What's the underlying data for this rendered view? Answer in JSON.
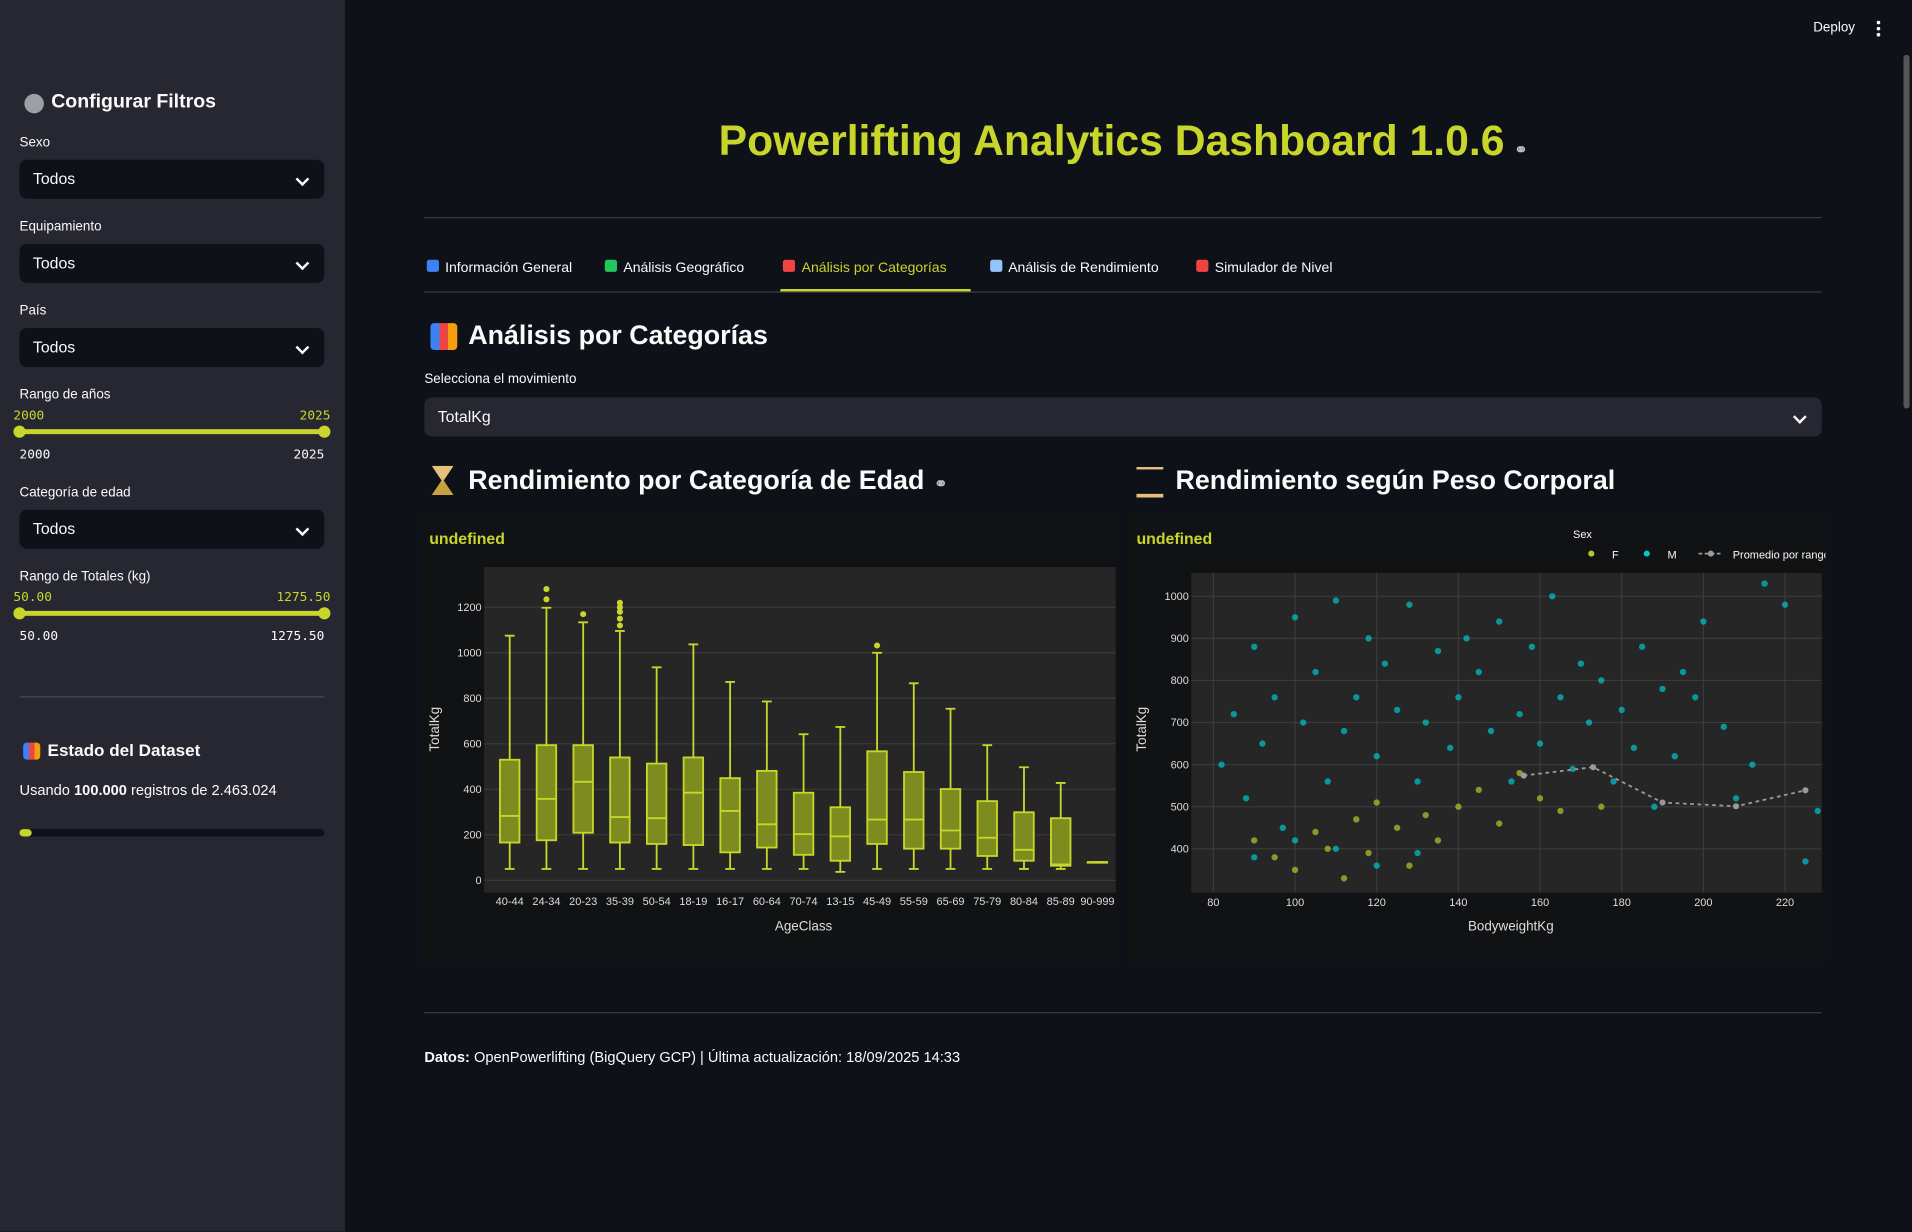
{
  "header": {
    "deploy": "Deploy"
  },
  "sidebar": {
    "title": "Configurar Filtros",
    "filters": [
      {
        "label": "Sexo",
        "value": "Todos"
      },
      {
        "label": "Equipamiento",
        "value": "Todos"
      },
      {
        "label": "País",
        "value": "Todos"
      }
    ],
    "year_range": {
      "label": "Rango de años",
      "min": 2000,
      "max": 2025,
      "value": [
        2000,
        2025
      ]
    },
    "age_category": {
      "label": "Categoría de edad",
      "value": "Todos"
    },
    "total_range": {
      "label": "Rango de Totales (kg)",
      "min": {
        "value": 50,
        "label": "50.00"
      },
      "max": {
        "value": 1275.5,
        "label": "1275.50"
      },
      "value": [
        {
          "value": 50,
          "label": "50.00"
        },
        {
          "value": 1275.5,
          "label": "1275.50"
        }
      ]
    },
    "dataset": {
      "title": "Estado del Dataset",
      "text_before": "Usando",
      "used": "100.000",
      "text_after": "registros de 2.463.024",
      "progress": 4
    }
  },
  "main": {
    "title": "Powerlifting Analytics Dashboard 1.0.6",
    "tabs": [
      "Información General",
      "Análisis Geográfico",
      "Análisis por Categorías",
      "Análisis de Rendimiento",
      "Simulador de Nivel"
    ],
    "active_tab": 2,
    "section_title": "Análisis por Categorías",
    "select_label": "Selecciona el movimiento",
    "select_value": "TotalKg",
    "footer": {
      "bold": "Datos:",
      "text": "OpenPowerlifting (BigQuery GCP) | Última actualización: 18/09/2025 14:33"
    }
  },
  "charts": [
    {
      "type": "box",
      "heading": "Rendimiento por Categoría de Edad",
      "title": "undefined",
      "x_label": "AgeClass",
      "y_label": "TotalKg",
      "color": "#c8d62b",
      "fill": "#7d8c1f",
      "categories": [
        "40-44",
        "24-34",
        "20-23",
        "35-39",
        "50-54",
        "18-19",
        "16-17",
        "60-64",
        "70-74",
        "13-15",
        "45-49",
        "55-59",
        "65-69",
        "75-79",
        "80-84",
        "85-89",
        "90-999"
      ],
      "whisker_low": [
        50,
        50,
        50,
        50,
        50,
        50,
        50,
        50,
        50,
        37,
        50,
        50,
        50,
        50,
        50,
        50,
        80
      ],
      "q1": [
        166,
        176,
        209,
        166,
        160,
        155,
        123,
        144,
        112,
        86,
        160,
        139,
        139,
        107,
        86,
        64,
        80
      ],
      "median": [
        283,
        358,
        433,
        278,
        273,
        385,
        305,
        246,
        203,
        193,
        267,
        267,
        219,
        187,
        134,
        70,
        80
      ],
      "q3": [
        530,
        594,
        594,
        540,
        513,
        540,
        449,
        481,
        385,
        321,
        567,
        476,
        401,
        348,
        299,
        273,
        80
      ],
      "whisker_high": [
        1075,
        1198,
        1134,
        1096,
        936,
        1037,
        872,
        786,
        642,
        674,
        1000,
        866,
        754,
        594,
        497,
        428,
        80
      ],
      "outliers": [
        [],
        [
          1235,
          1280
        ],
        [
          1170
        ],
        [
          1120,
          1150,
          1180,
          1200,
          1220
        ],
        [],
        [],
        [],
        [],
        [],
        [],
        [
          1032
        ],
        [],
        [],
        [],
        [],
        [],
        []
      ],
      "ylim": [
        -54,
        1377
      ],
      "yticks": [
        0,
        200,
        400,
        600,
        800,
        1000,
        1200
      ],
      "grid": true
    },
    {
      "type": "scatter",
      "heading": "Rendimiento según Peso Corporal",
      "title": "undefined",
      "x_label": "BodyweightKg",
      "y_label": "TotalKg",
      "legend_title": "Sex",
      "xlim": [
        74.6,
        229
      ],
      "ylim": [
        296,
        1055
      ],
      "xticks": [
        80,
        100,
        120,
        140,
        160,
        180,
        200,
        220
      ],
      "yticks": [
        400,
        500,
        600,
        700,
        800,
        900,
        1000
      ],
      "grid": true,
      "series": [
        {
          "name": "F",
          "color": "#b9c72a",
          "x": [
            90,
            95,
            100,
            105,
            108,
            112,
            115,
            118,
            120,
            125,
            128,
            132,
            135,
            140,
            145,
            150,
            155,
            160,
            165,
            175
          ],
          "y": [
            420,
            380,
            350,
            440,
            400,
            330,
            470,
            390,
            510,
            450,
            360,
            480,
            420,
            500,
            540,
            460,
            580,
            520,
            490,
            500
          ]
        },
        {
          "name": "M",
          "color": "#00c8cc",
          "x": [
            82,
            85,
            88,
            90,
            92,
            95,
            97,
            100,
            102,
            105,
            108,
            110,
            112,
            115,
            118,
            120,
            122,
            125,
            128,
            130,
            132,
            135,
            138,
            140,
            142,
            145,
            148,
            150,
            153,
            155,
            158,
            160,
            163,
            165,
            168,
            170,
            172,
            175,
            178,
            180,
            183,
            185,
            188,
            190,
            193,
            195,
            198,
            200,
            205,
            208,
            212,
            215,
            220,
            225,
            228,
            100,
            110,
            120,
            130,
            90
          ],
          "y": [
            600,
            720,
            520,
            880,
            650,
            760,
            450,
            950,
            700,
            820,
            560,
            990,
            680,
            760,
            900,
            620,
            840,
            730,
            980,
            560,
            700,
            870,
            640,
            760,
            900,
            820,
            680,
            940,
            560,
            720,
            880,
            650,
            1000,
            760,
            590,
            840,
            700,
            800,
            560,
            730,
            640,
            880,
            500,
            780,
            620,
            820,
            760,
            940,
            690,
            520,
            600,
            1030,
            980,
            370,
            490,
            420,
            400,
            360,
            390,
            380
          ]
        },
        {
          "name": "Promedio por rango",
          "color": "#9a9a9a",
          "mode": "line",
          "x": [
            156,
            173,
            190,
            208,
            225
          ],
          "y": [
            574,
            594,
            510,
            501,
            539
          ]
        }
      ]
    }
  ]
}
